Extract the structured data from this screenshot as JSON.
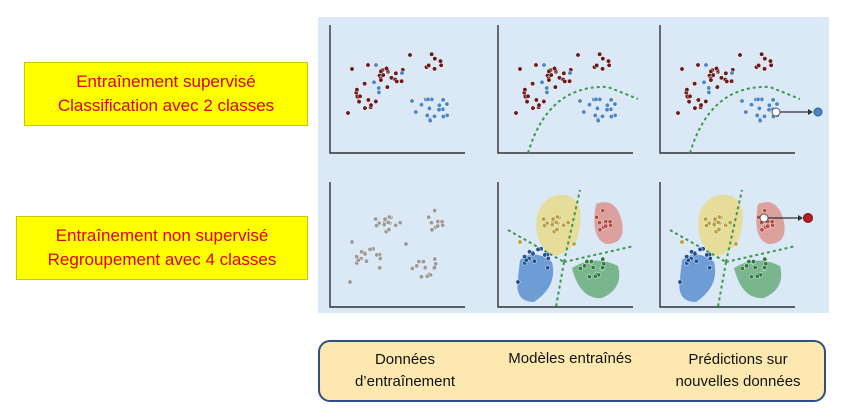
{
  "labels": {
    "supervised": {
      "line1": "Entraînement supervisé",
      "line2": "Classification avec 2 classes"
    },
    "unsupervised": {
      "line1": "Entraînement non supervisé",
      "line2": "Regroupement avec 4 classes"
    }
  },
  "legend": {
    "training_data": "Données d’entraînement",
    "trained_models": "Modèles entraînés",
    "predictions": "Prédictions sur nouvelles données"
  },
  "colors": {
    "label_background": "#ffff00",
    "label_text": "#e00000",
    "panel_background": "#dbe8f6",
    "class_a_dot": "#6b1a1a",
    "class_b_dot": "#4a86c5",
    "unlabeled_dot": "#9a9a9a",
    "boundary_line": "#3a9a4a",
    "cluster_yellow": "#e8d97a",
    "cluster_red": "#d98a80",
    "cluster_blue": "#4a84c9",
    "cluster_green": "#5aa56a",
    "legend_background": "#fde9b0",
    "legend_border": "#2e4f86"
  }
}
